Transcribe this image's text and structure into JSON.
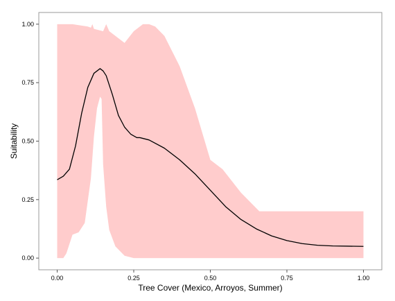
{
  "chart_data": {
    "type": "line",
    "title": "",
    "xlabel": "Tree Cover (Mexico, Arroyos, Summer)",
    "ylabel": "Suitability",
    "xlim": [
      -0.06,
      1.06
    ],
    "ylim": [
      -0.05,
      1.05
    ],
    "xticks": [
      0.0,
      0.25,
      0.5,
      0.75,
      1.0
    ],
    "xtick_labels": [
      "0.00",
      "0.25",
      "0.50",
      "0.75",
      "1.00"
    ],
    "yticks": [
      0.0,
      0.25,
      0.5,
      0.75,
      1.0
    ],
    "ytick_labels": [
      "0.00",
      "0.25",
      "0.50",
      "0.75",
      "1.00"
    ],
    "grid": false,
    "legend": "none",
    "colors": {
      "line": "#000000",
      "band": "#ffcccc",
      "panel_border": "#999999",
      "tick": "#555555"
    },
    "series": [
      {
        "role": "line",
        "x": [
          0.0,
          0.02,
          0.04,
          0.06,
          0.08,
          0.1,
          0.12,
          0.14,
          0.15,
          0.16,
          0.18,
          0.2,
          0.22,
          0.24,
          0.26,
          0.27,
          0.3,
          0.35,
          0.4,
          0.45,
          0.5,
          0.55,
          0.6,
          0.65,
          0.7,
          0.75,
          0.8,
          0.85,
          0.9,
          0.95,
          1.0
        ],
        "y": [
          0.335,
          0.35,
          0.38,
          0.48,
          0.62,
          0.73,
          0.79,
          0.81,
          0.8,
          0.78,
          0.7,
          0.61,
          0.56,
          0.53,
          0.515,
          0.515,
          0.505,
          0.47,
          0.42,
          0.36,
          0.29,
          0.22,
          0.165,
          0.125,
          0.095,
          0.075,
          0.062,
          0.055,
          0.052,
          0.051,
          0.05
        ]
      },
      {
        "role": "band_upper",
        "x": [
          0.0,
          0.05,
          0.1,
          0.11,
          0.115,
          0.12,
          0.15,
          0.16,
          0.17,
          0.2,
          0.22,
          0.25,
          0.28,
          0.3,
          0.32,
          0.35,
          0.4,
          0.45,
          0.5,
          0.54,
          0.6,
          0.66,
          0.7,
          0.8,
          0.9,
          1.0
        ],
        "y": [
          1.0,
          1.0,
          0.99,
          0.985,
          1.0,
          0.98,
          0.97,
          1.0,
          0.97,
          0.94,
          0.92,
          0.97,
          1.0,
          1.0,
          0.99,
          0.95,
          0.82,
          0.64,
          0.42,
          0.38,
          0.28,
          0.2,
          0.2,
          0.2,
          0.2,
          0.2
        ]
      },
      {
        "role": "band_lower",
        "x": [
          0.0,
          0.02,
          0.03,
          0.04,
          0.05,
          0.07,
          0.09,
          0.11,
          0.12,
          0.13,
          0.14,
          0.145,
          0.15,
          0.16,
          0.17,
          0.19,
          0.22,
          0.25,
          0.3,
          0.4,
          0.5,
          0.6,
          0.7,
          0.8,
          1.0
        ],
        "y": [
          0.0,
          0.0,
          0.02,
          0.06,
          0.1,
          0.11,
          0.15,
          0.34,
          0.52,
          0.64,
          0.69,
          0.68,
          0.4,
          0.22,
          0.12,
          0.05,
          0.01,
          0.0,
          0.0,
          0.0,
          0.0,
          0.0,
          0.0,
          0.0,
          0.0
        ]
      }
    ]
  }
}
